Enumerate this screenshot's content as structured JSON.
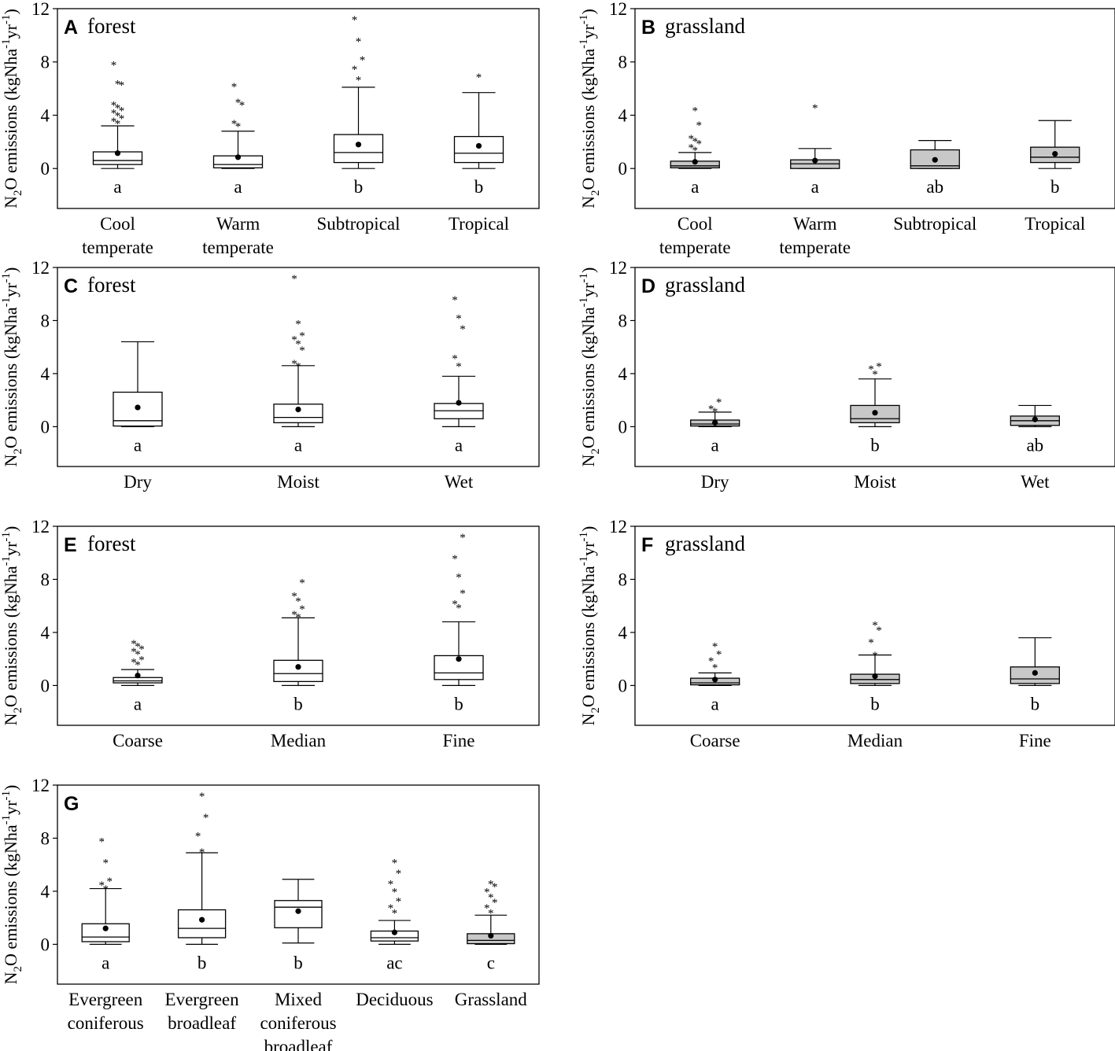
{
  "chart_data": [
    {
      "type": "box",
      "panel": "A",
      "title": "forest",
      "ylabel": "N2O emissions (kgNha-1yr-1)",
      "ylim": [
        -3,
        12
      ],
      "yticks": [
        0,
        4,
        8,
        12
      ],
      "box_fill": "#ffffff",
      "categories": [
        "Cool temperate",
        "Warm temperate",
        "Subtropical",
        "Tropical"
      ],
      "xlabels": [
        [
          "Cool",
          "temperate"
        ],
        [
          "Warm",
          "temperate"
        ],
        [
          "Subtropical"
        ],
        [
          "Tropical"
        ]
      ],
      "groups": [
        {
          "min": 0,
          "q1": 0.3,
          "median": 0.6,
          "q3": 1.25,
          "max": 3.2,
          "mean": 1.15,
          "outliers": [
            3.6,
            3.8,
            4.0,
            4.2,
            4.4,
            4.6,
            4.8,
            5.0,
            6.5,
            6.6,
            8.0
          ],
          "letter": "a"
        },
        {
          "min": 0,
          "q1": 0.05,
          "median": 0.3,
          "q3": 0.95,
          "max": 2.8,
          "mean": 0.85,
          "outliers": [
            3.4,
            3.6,
            5.0,
            5.2,
            6.4
          ],
          "letter": "a"
        },
        {
          "min": 0,
          "q1": 0.45,
          "median": 1.2,
          "q3": 2.55,
          "max": 6.1,
          "mean": 1.8,
          "outliers": [
            6.9,
            7.7,
            8.4,
            9.8,
            11.4
          ],
          "letter": "b"
        },
        {
          "min": 0,
          "q1": 0.45,
          "median": 1.15,
          "q3": 2.4,
          "max": 5.7,
          "mean": 1.7,
          "outliers": [
            7.1
          ],
          "letter": "b"
        }
      ]
    },
    {
      "type": "box",
      "panel": "B",
      "title": "grassland",
      "ylabel": "N2O emissions (kgNha-1yr-1)",
      "ylim": [
        -3,
        12
      ],
      "yticks": [
        0,
        4,
        8,
        12
      ],
      "box_fill": "#c8c8c8",
      "categories": [
        "Cool temperate",
        "Warm temperate",
        "Subtropical",
        "Tropical"
      ],
      "xlabels": [
        [
          "Cool",
          "temperate"
        ],
        [
          "Warm",
          "temperate"
        ],
        [
          "Subtropical"
        ],
        [
          "Tropical"
        ]
      ],
      "groups": [
        {
          "min": 0,
          "q1": 0.05,
          "median": 0.2,
          "q3": 0.55,
          "max": 1.2,
          "mean": 0.5,
          "outliers": [
            1.6,
            1.8,
            2.1,
            2.3,
            2.5,
            3.5,
            4.6
          ],
          "letter": "a"
        },
        {
          "min": 0,
          "q1": 0,
          "median": 0.35,
          "q3": 0.65,
          "max": 1.5,
          "mean": 0.6,
          "outliers": [
            4.8
          ],
          "letter": "a"
        },
        {
          "min": 0,
          "q1": 0,
          "median": 0.2,
          "q3": 1.4,
          "max": 2.1,
          "mean": 0.65,
          "outliers": [],
          "letter": "ab"
        },
        {
          "min": 0,
          "q1": 0.45,
          "median": 0.85,
          "q3": 1.6,
          "max": 3.6,
          "mean": 1.1,
          "outliers": [],
          "letter": "b"
        }
      ]
    },
    {
      "type": "box",
      "panel": "C",
      "title": "forest",
      "ylabel": "N2O emissions (kgNha-1yr-1)",
      "ylim": [
        -3,
        12
      ],
      "yticks": [
        0,
        4,
        8,
        12
      ],
      "box_fill": "#ffffff",
      "categories": [
        "Dry",
        "Moist",
        "Wet"
      ],
      "xlabels": [
        [
          "Dry"
        ],
        [
          "Moist"
        ],
        [
          "Wet"
        ]
      ],
      "groups": [
        {
          "min": 0,
          "q1": 0.05,
          "median": 0.45,
          "q3": 2.6,
          "max": 6.4,
          "mean": 1.45,
          "outliers": [],
          "letter": "a"
        },
        {
          "min": 0,
          "q1": 0.3,
          "median": 0.7,
          "q3": 1.7,
          "max": 4.6,
          "mean": 1.3,
          "outliers": [
            4.8,
            5.0,
            6.0,
            6.5,
            6.8,
            7.1,
            8.0,
            11.4
          ],
          "letter": "a"
        },
        {
          "min": 0,
          "q1": 0.6,
          "median": 1.2,
          "q3": 1.75,
          "max": 3.8,
          "mean": 1.8,
          "outliers": [
            4.8,
            5.4,
            7.6,
            8.4,
            9.8
          ],
          "letter": "a"
        }
      ]
    },
    {
      "type": "box",
      "panel": "D",
      "title": "grassland",
      "ylabel": "N2O emissions (kgNha-1yr-1)",
      "ylim": [
        -3,
        12
      ],
      "yticks": [
        0,
        4,
        8,
        12
      ],
      "box_fill": "#c8c8c8",
      "categories": [
        "Dry",
        "Moist",
        "Wet"
      ],
      "xlabels": [
        [
          "Dry"
        ],
        [
          "Moist"
        ],
        [
          "Wet"
        ]
      ],
      "groups": [
        {
          "min": 0,
          "q1": 0.05,
          "median": 0.2,
          "q3": 0.5,
          "max": 1.1,
          "mean": 0.3,
          "outliers": [
            1.4,
            1.6,
            2.1
          ],
          "letter": "a"
        },
        {
          "min": 0,
          "q1": 0.3,
          "median": 0.6,
          "q3": 1.6,
          "max": 3.6,
          "mean": 1.05,
          "outliers": [
            4.2,
            4.6,
            4.8
          ],
          "letter": "b"
        },
        {
          "min": 0,
          "q1": 0.1,
          "median": 0.45,
          "q3": 0.8,
          "max": 1.6,
          "mean": 0.55,
          "outliers": [],
          "letter": "ab"
        }
      ]
    },
    {
      "type": "box",
      "panel": "E",
      "title": "forest",
      "ylabel": "N2O emissions (kgNha-1yr-1)",
      "ylim": [
        -3,
        12
      ],
      "yticks": [
        0,
        4,
        8,
        12
      ],
      "box_fill": "#ffffff",
      "categories": [
        "Coarse",
        "Median",
        "Fine"
      ],
      "xlabels": [
        [
          "Coarse"
        ],
        [
          "Median"
        ],
        [
          "Fine"
        ]
      ],
      "groups": [
        {
          "min": 0,
          "q1": 0.2,
          "median": 0.35,
          "q3": 0.6,
          "max": 1.2,
          "mean": 0.75,
          "outliers": [
            1.8,
            2.0,
            2.2,
            2.6,
            2.8,
            3.0,
            3.2,
            3.4
          ],
          "letter": "a"
        },
        {
          "min": 0,
          "q1": 0.3,
          "median": 0.9,
          "q3": 1.9,
          "max": 5.1,
          "mean": 1.4,
          "outliers": [
            5.4,
            5.6,
            6.0,
            6.6,
            7.0,
            8.0
          ],
          "letter": "b"
        },
        {
          "min": 0,
          "q1": 0.45,
          "median": 0.95,
          "q3": 2.25,
          "max": 4.8,
          "mean": 2.0,
          "outliers": [
            6.1,
            6.4,
            7.2,
            8.4,
            9.8,
            11.4
          ],
          "letter": "b"
        }
      ]
    },
    {
      "type": "box",
      "panel": "F",
      "title": "grassland",
      "ylabel": "N2O emissions (kgNha-1yr-1)",
      "ylim": [
        -3,
        12
      ],
      "yticks": [
        0,
        4,
        8,
        12
      ],
      "box_fill": "#c8c8c8",
      "categories": [
        "Coarse",
        "Median",
        "Fine"
      ],
      "xlabels": [
        [
          "Coarse"
        ],
        [
          "Median"
        ],
        [
          "Fine"
        ]
      ],
      "groups": [
        {
          "min": 0,
          "q1": 0.05,
          "median": 0.2,
          "q3": 0.55,
          "max": 0.95,
          "mean": 0.45,
          "outliers": [
            1.6,
            2.1,
            2.6,
            3.2
          ],
          "letter": "a"
        },
        {
          "min": 0,
          "q1": 0.15,
          "median": 0.45,
          "q3": 0.85,
          "max": 2.3,
          "mean": 0.7,
          "outliers": [
            2.5,
            3.5,
            4.4,
            4.8
          ],
          "letter": "b"
        },
        {
          "min": 0,
          "q1": 0.15,
          "median": 0.5,
          "q3": 1.4,
          "max": 3.6,
          "mean": 0.95,
          "outliers": [],
          "letter": "b"
        }
      ]
    },
    {
      "type": "box",
      "panel": "G",
      "title": "",
      "ylabel": "N2O emissions (kgNha-1yr-1)",
      "ylim": [
        -3,
        12
      ],
      "yticks": [
        0,
        4,
        8,
        12
      ],
      "box_fill": "#ffffff",
      "last_box_fill": "#c8c8c8",
      "categories": [
        "Evergreen coniferous",
        "Evergreen broadleaf",
        "Mixed coniferous broadleaf",
        "Deciduous",
        "Grassland"
      ],
      "xlabels": [
        [
          "Evergreen",
          "coniferous"
        ],
        [
          "Evergreen",
          "broadleaf"
        ],
        [
          "Mixed",
          "coniferous",
          "broadleaf"
        ],
        [
          "Deciduous"
        ],
        [
          "Grassland"
        ]
      ],
      "groups": [
        {
          "min": 0,
          "q1": 0.2,
          "median": 0.55,
          "q3": 1.55,
          "max": 4.2,
          "mean": 1.2,
          "outliers": [
            4.4,
            4.7,
            5.0,
            6.4,
            8.0
          ],
          "letter": "a"
        },
        {
          "min": 0,
          "q1": 0.5,
          "median": 1.2,
          "q3": 2.6,
          "max": 6.9,
          "mean": 1.85,
          "outliers": [
            7.2,
            8.4,
            9.8,
            11.4
          ],
          "letter": "b"
        },
        {
          "min": 0.1,
          "q1": 1.25,
          "median": 2.8,
          "q3": 3.3,
          "max": 4.9,
          "mean": 2.5,
          "outliers": [],
          "letter": "b"
        },
        {
          "min": 0,
          "q1": 0.25,
          "median": 0.5,
          "q3": 1.0,
          "max": 1.8,
          "mean": 0.9,
          "outliers": [
            2.6,
            3.0,
            3.5,
            4.2,
            4.8,
            5.6,
            6.4
          ],
          "letter": "ac"
        },
        {
          "min": 0,
          "q1": 0.05,
          "median": 0.3,
          "q3": 0.8,
          "max": 2.2,
          "mean": 0.65,
          "outliers": [
            2.6,
            3.0,
            3.4,
            3.8,
            4.2,
            4.6,
            4.8
          ],
          "letter": "c"
        }
      ]
    }
  ]
}
